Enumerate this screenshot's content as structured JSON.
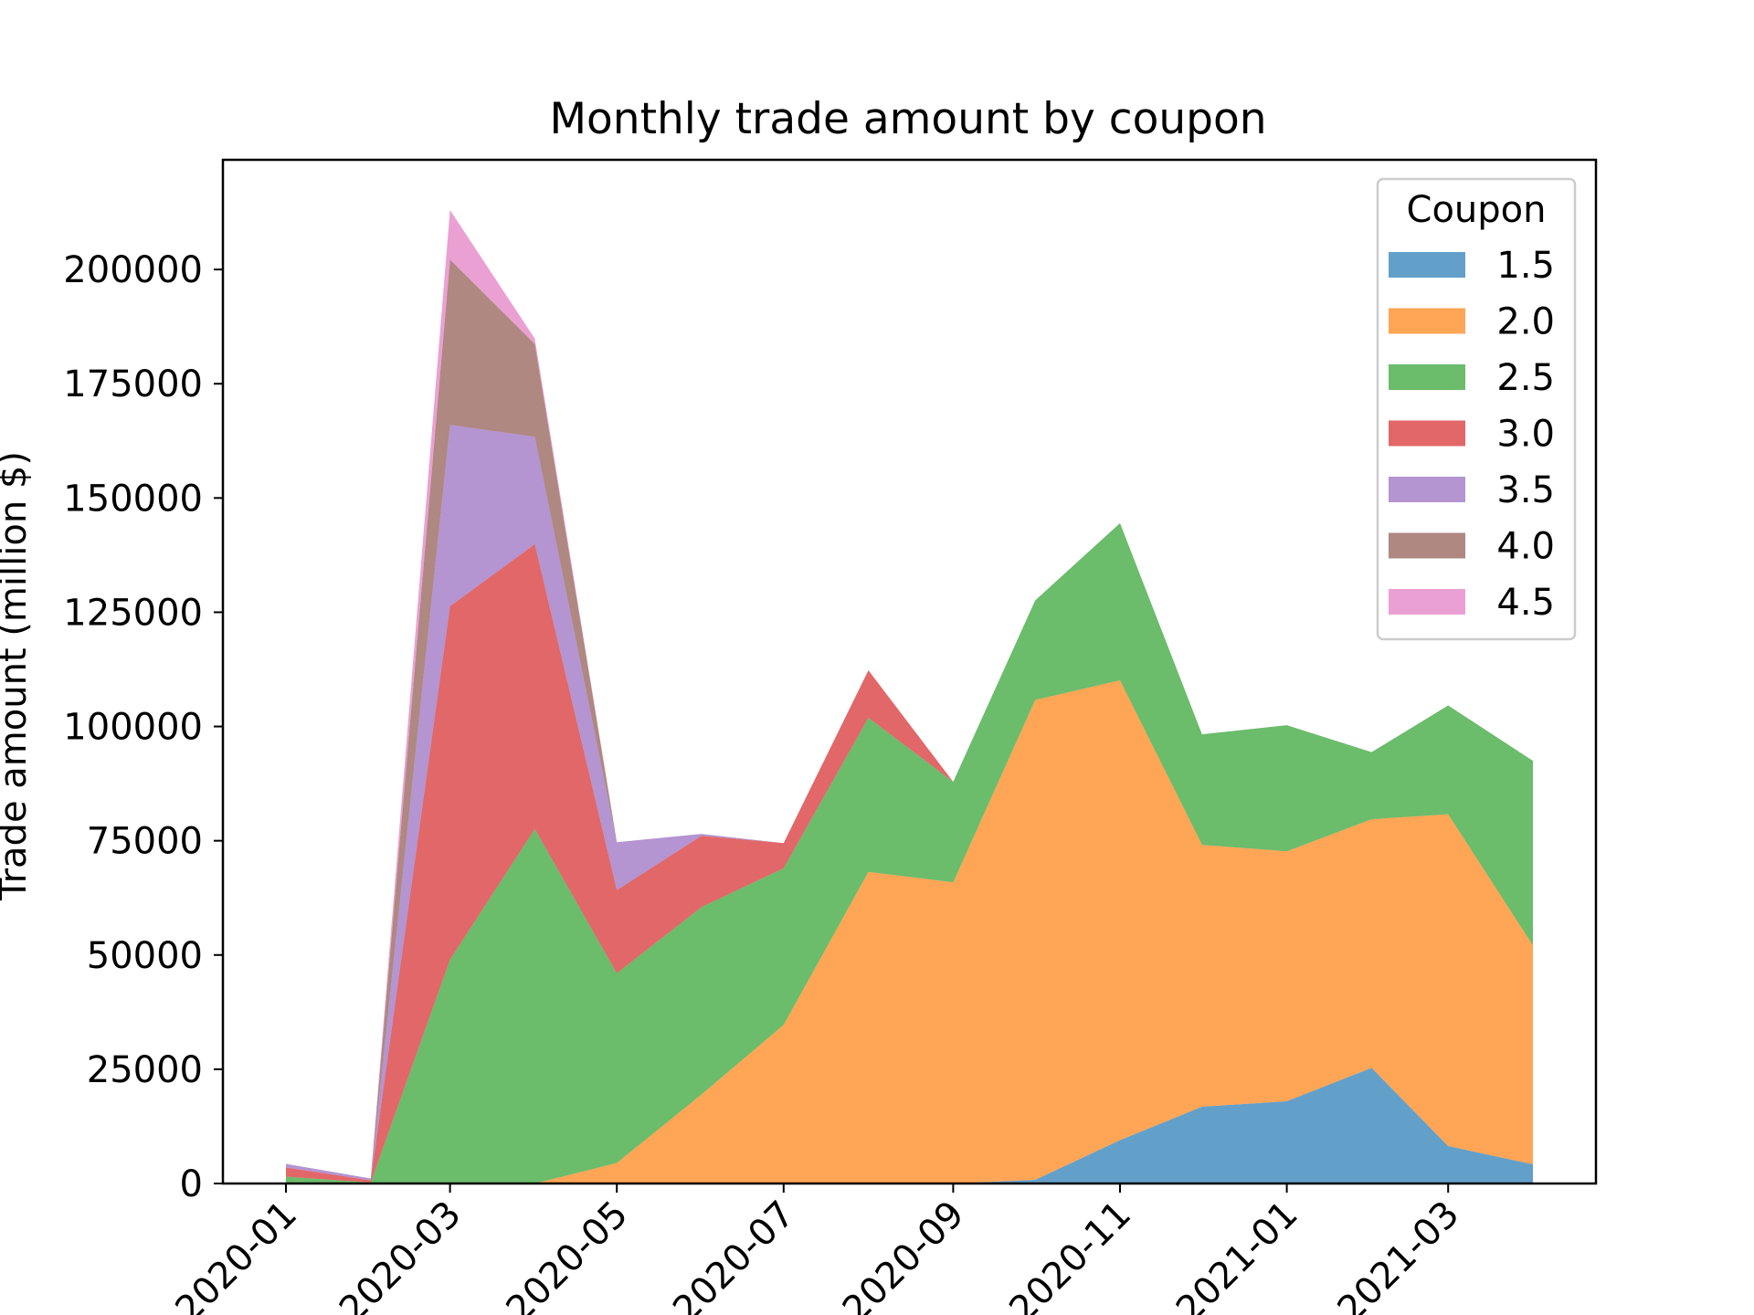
{
  "chart_data": {
    "type": "area",
    "stacked": true,
    "title": "Monthly trade amount by coupon",
    "xlabel": "",
    "ylabel": "Trade amount (million $)",
    "x": [
      "2020-01",
      "2020-02",
      "2020-03",
      "2020-04",
      "2020-05",
      "2020-06",
      "2020-07",
      "2020-08",
      "2020-09",
      "2020-10",
      "2020-11",
      "2020-12",
      "2021-01",
      "2021-02",
      "2021-03",
      "2021-04"
    ],
    "x_ticks": [
      "2020-01",
      "2020-03",
      "2020-05",
      "2020-07",
      "2020-09",
      "2020-11",
      "2021-01",
      "2021-03"
    ],
    "ylim": [
      0,
      224000
    ],
    "y_ticks": [
      0,
      25000,
      50000,
      75000,
      100000,
      125000,
      150000,
      175000,
      200000
    ],
    "grid": false,
    "legend": {
      "title": "Coupon",
      "position": "top-right"
    },
    "series": [
      {
        "name": "1.5",
        "color": "#1f77b4",
        "values": [
          0,
          0,
          0,
          0,
          0,
          0,
          0,
          0,
          0,
          800,
          9500,
          16800,
          18000,
          25300,
          8200,
          4200
        ]
      },
      {
        "name": "2.0",
        "color": "#ff7f0e",
        "values": [
          0,
          0,
          0,
          0,
          4500,
          19500,
          34700,
          68200,
          65900,
          105000,
          100600,
          57300,
          54700,
          54400,
          72600,
          47900
        ]
      },
      {
        "name": "2.5",
        "color": "#2ca02c",
        "values": [
          1500,
          200,
          49000,
          77600,
          41500,
          41000,
          34300,
          33700,
          22000,
          21800,
          34400,
          24200,
          27600,
          14700,
          23800,
          40400
        ]
      },
      {
        "name": "3.0",
        "color": "#d62728",
        "values": [
          2000,
          500,
          77300,
          62300,
          18200,
          15600,
          5500,
          10400,
          0,
          0,
          0,
          0,
          0,
          0,
          0,
          0
        ]
      },
      {
        "name": "3.5",
        "color": "#9467bd",
        "values": [
          800,
          400,
          39700,
          23500,
          10500,
          400,
          0,
          0,
          0,
          0,
          0,
          0,
          0,
          0,
          0,
          0
        ]
      },
      {
        "name": "4.0",
        "color": "#8c564b",
        "values": [
          0,
          0,
          36200,
          20300,
          0,
          0,
          0,
          0,
          0,
          0,
          0,
          0,
          0,
          0,
          0,
          0
        ]
      },
      {
        "name": "4.5",
        "color": "#e377c2",
        "values": [
          0,
          0,
          10800,
          1200,
          0,
          0,
          0,
          0,
          0,
          0,
          0,
          0,
          0,
          0,
          0,
          0
        ]
      }
    ]
  }
}
